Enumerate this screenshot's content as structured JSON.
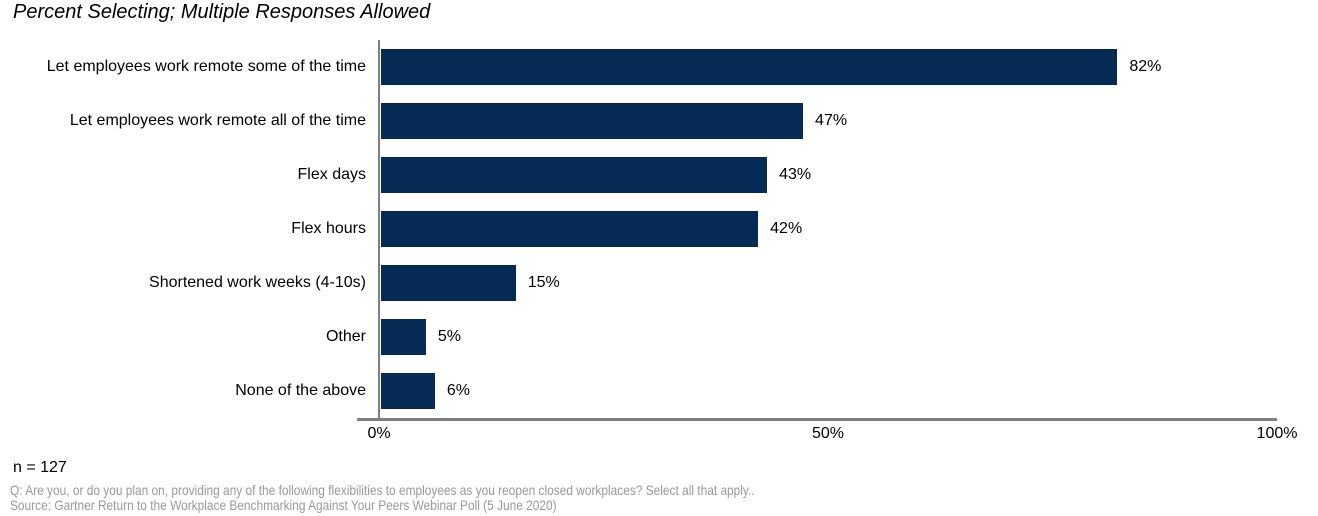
{
  "chart_data": {
    "type": "bar",
    "orientation": "horizontal",
    "title": "Percent Selecting; Multiple Responses Allowed",
    "categories": [
      "Let employees work remote some of the time",
      "Let employees work remote all of the time",
      "Flex days",
      "Flex hours",
      "Shortened work weeks (4-10s)",
      "Other",
      "None of the above"
    ],
    "values": [
      82,
      47,
      43,
      42,
      15,
      5,
      6
    ],
    "value_labels": [
      "82%",
      "47%",
      "43%",
      "42%",
      "15%",
      "5%",
      "6%"
    ],
    "xlim": [
      0,
      100
    ],
    "x_ticks": [
      {
        "value": 0,
        "label": "0%"
      },
      {
        "value": 50,
        "label": "50%"
      },
      {
        "value": 100,
        "label": "100%"
      }
    ],
    "xlabel": "",
    "ylabel": "",
    "grid": false,
    "legend": false,
    "bar_color": "#052A54",
    "axis_color": "#7F7F7F"
  },
  "footer": {
    "n_label": "n = 127",
    "question": "Q: Are you, or do you plan on, providing any of the following flexibilities to employees as you reopen closed workplaces? Select all that apply..",
    "source": "Source: Gartner Return to the Workplace Benchmarking Against Your Peers Webinar Poll (5 June 2020)",
    "text_color": "#999999"
  }
}
